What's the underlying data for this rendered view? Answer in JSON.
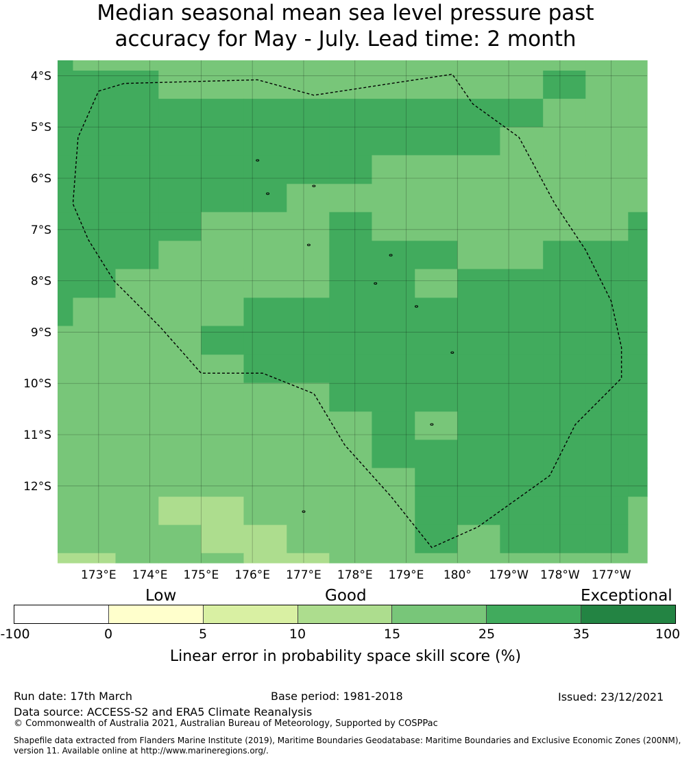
{
  "title_line1": "Median seasonal mean sea level pressure past",
  "title_line2": "accuracy for May - July. Lead time: 2 month",
  "map": {
    "lon_range_deg_east": [
      172.2,
      183.7
    ],
    "lat_range": [
      -3.7,
      -13.5
    ],
    "lon_ticks": [
      {
        "value": 173,
        "label": "173°E"
      },
      {
        "value": 174,
        "label": "174°E"
      },
      {
        "value": 175,
        "label": "175°E"
      },
      {
        "value": 176,
        "label": "176°E"
      },
      {
        "value": 177,
        "label": "177°E"
      },
      {
        "value": 178,
        "label": "178°E"
      },
      {
        "value": 179,
        "label": "179°E"
      },
      {
        "value": 180,
        "label": "180°"
      },
      {
        "value": 181,
        "label": "179°W"
      },
      {
        "value": 182,
        "label": "178°W"
      },
      {
        "value": 183,
        "label": "177°W"
      }
    ],
    "lat_ticks": [
      {
        "value": -4,
        "label": "4°S"
      },
      {
        "value": -5,
        "label": "5°S"
      },
      {
        "value": -6,
        "label": "6°S"
      },
      {
        "value": -7,
        "label": "7°S"
      },
      {
        "value": -8,
        "label": "8°S"
      },
      {
        "value": -9,
        "label": "9°S"
      },
      {
        "value": -10,
        "label": "10°S"
      },
      {
        "value": -11,
        "label": "11°S"
      },
      {
        "value": -12,
        "label": "12°S"
      }
    ],
    "grid_lines": true,
    "grid_column_lon_edges": [
      172.2,
      172.5,
      173.33,
      174.17,
      175.0,
      175.83,
      176.67,
      177.5,
      178.33,
      179.17,
      180.0,
      180.83,
      181.67,
      182.5,
      183.33,
      183.7
    ],
    "grid_row_lat_edges": [
      -3.7,
      -3.9,
      -4.45,
      -5.0,
      -5.55,
      -6.11,
      -6.66,
      -7.22,
      -7.77,
      -8.33,
      -8.88,
      -9.44,
      -9.99,
      -10.55,
      -11.1,
      -11.65,
      -12.21,
      -12.76,
      -13.31,
      -13.5
    ],
    "class_colors": [
      "#ffffff",
      "#ffffcc",
      "#d9f0a3",
      "#addd8e",
      "#78c679",
      "#41ab5d",
      "#238443"
    ],
    "skill_class_grid": [
      [
        5,
        4,
        4,
        4,
        4,
        4,
        4,
        4,
        4,
        4,
        4,
        4,
        4,
        4,
        4
      ],
      [
        5,
        5,
        5,
        4,
        4,
        4,
        4,
        4,
        4,
        4,
        4,
        4,
        5,
        4,
        4
      ],
      [
        5,
        5,
        5,
        5,
        5,
        5,
        5,
        5,
        5,
        5,
        5,
        5,
        4,
        4,
        4
      ],
      [
        5,
        5,
        5,
        5,
        5,
        5,
        5,
        5,
        5,
        5,
        5,
        4,
        4,
        4,
        4
      ],
      [
        5,
        5,
        5,
        5,
        5,
        5,
        5,
        5,
        4,
        4,
        4,
        4,
        4,
        4,
        4
      ],
      [
        5,
        5,
        5,
        5,
        5,
        5,
        4,
        4,
        4,
        4,
        4,
        4,
        4,
        4,
        4
      ],
      [
        5,
        5,
        5,
        5,
        4,
        4,
        4,
        5,
        4,
        4,
        4,
        4,
        4,
        4,
        5
      ],
      [
        5,
        5,
        5,
        4,
        4,
        4,
        4,
        5,
        5,
        5,
        4,
        4,
        5,
        5,
        5
      ],
      [
        5,
        5,
        4,
        4,
        4,
        4,
        4,
        5,
        5,
        4,
        5,
        5,
        5,
        5,
        5
      ],
      [
        5,
        4,
        4,
        4,
        4,
        5,
        5,
        5,
        5,
        5,
        5,
        5,
        5,
        5,
        5
      ],
      [
        4,
        4,
        4,
        4,
        5,
        5,
        5,
        5,
        5,
        5,
        5,
        5,
        5,
        5,
        5
      ],
      [
        4,
        4,
        4,
        4,
        4,
        5,
        5,
        5,
        5,
        5,
        5,
        5,
        5,
        5,
        5
      ],
      [
        4,
        4,
        4,
        4,
        4,
        4,
        4,
        5,
        5,
        5,
        5,
        5,
        5,
        5,
        5
      ],
      [
        4,
        4,
        4,
        4,
        4,
        4,
        4,
        4,
        5,
        4,
        5,
        5,
        5,
        5,
        5
      ],
      [
        4,
        4,
        4,
        4,
        4,
        4,
        4,
        4,
        5,
        5,
        5,
        5,
        5,
        5,
        5
      ],
      [
        4,
        4,
        4,
        4,
        4,
        4,
        4,
        4,
        4,
        5,
        5,
        5,
        5,
        5,
        5
      ],
      [
        4,
        4,
        4,
        3,
        3,
        4,
        4,
        4,
        4,
        5,
        5,
        5,
        5,
        5,
        4
      ],
      [
        4,
        4,
        4,
        4,
        3,
        3,
        4,
        4,
        4,
        5,
        4,
        5,
        5,
        5,
        4
      ],
      [
        3,
        3,
        4,
        4,
        4,
        3,
        3,
        4,
        4,
        4,
        4,
        4,
        4,
        4,
        4
      ]
    ],
    "eez_boundary": [
      [
        173.0,
        -4.3
      ],
      [
        173.5,
        -4.15
      ],
      [
        176.1,
        -4.08
      ],
      [
        177.2,
        -4.38
      ],
      [
        179.9,
        -3.97
      ],
      [
        180.3,
        -4.55
      ],
      [
        181.2,
        -5.2
      ],
      [
        181.9,
        -6.5
      ],
      [
        182.5,
        -7.4
      ],
      [
        183.0,
        -8.4
      ],
      [
        183.2,
        -9.3
      ],
      [
        183.2,
        -9.9
      ],
      [
        182.3,
        -10.8
      ],
      [
        181.8,
        -11.8
      ],
      [
        180.4,
        -12.8
      ],
      [
        179.5,
        -13.2
      ],
      [
        178.7,
        -12.2
      ],
      [
        177.8,
        -11.2
      ],
      [
        177.2,
        -10.2
      ],
      [
        176.2,
        -9.8
      ],
      [
        175.0,
        -9.8
      ],
      [
        174.2,
        -8.9
      ],
      [
        173.3,
        -8.0
      ],
      [
        172.8,
        -7.2
      ],
      [
        172.5,
        -6.5
      ],
      [
        172.6,
        -5.2
      ],
      [
        173.0,
        -4.3
      ]
    ],
    "islands": [
      [
        176.1,
        -5.65
      ],
      [
        176.3,
        -6.3
      ],
      [
        177.2,
        -6.15
      ],
      [
        177.1,
        -7.3
      ],
      [
        178.7,
        -7.5
      ],
      [
        178.4,
        -8.05
      ],
      [
        179.2,
        -8.5
      ],
      [
        179.9,
        -9.4
      ],
      [
        179.5,
        -10.8
      ],
      [
        177.0,
        -12.5
      ]
    ]
  },
  "colorbar": {
    "category_labels": {
      "low": "Low",
      "good": "Good",
      "exceptional": "Exceptional"
    },
    "tick_labels": [
      "-100",
      "0",
      "5",
      "10",
      "15",
      "25",
      "35",
      "100"
    ],
    "segment_colors": [
      "#ffffff",
      "#ffffcc",
      "#d9f0a3",
      "#addd8e",
      "#78c679",
      "#41ab5d",
      "#238443"
    ],
    "title": "Linear error in probability space skill score (%)"
  },
  "footer": {
    "run_date": "Run date: 17th March",
    "base_period": "Base period: 1981-2018",
    "issued": "Issued: 23/12/2021",
    "data_source": "Data source: ACCESS-S2 and ERA5 Climate Reanalysis",
    "copyright": "© Commonwealth of Australia 2021, Australian Bureau of Meteorology, Supported by COSPPac",
    "shapefile_line1": "Shapefile data extracted from Flanders Marine Institute (2019), Maritime Boundaries Geodatabase: Maritime Boundaries and Exclusive Economic Zones (200NM),",
    "shapefile_line2": "version 11. Available online at http://www.marineregions.org/."
  }
}
